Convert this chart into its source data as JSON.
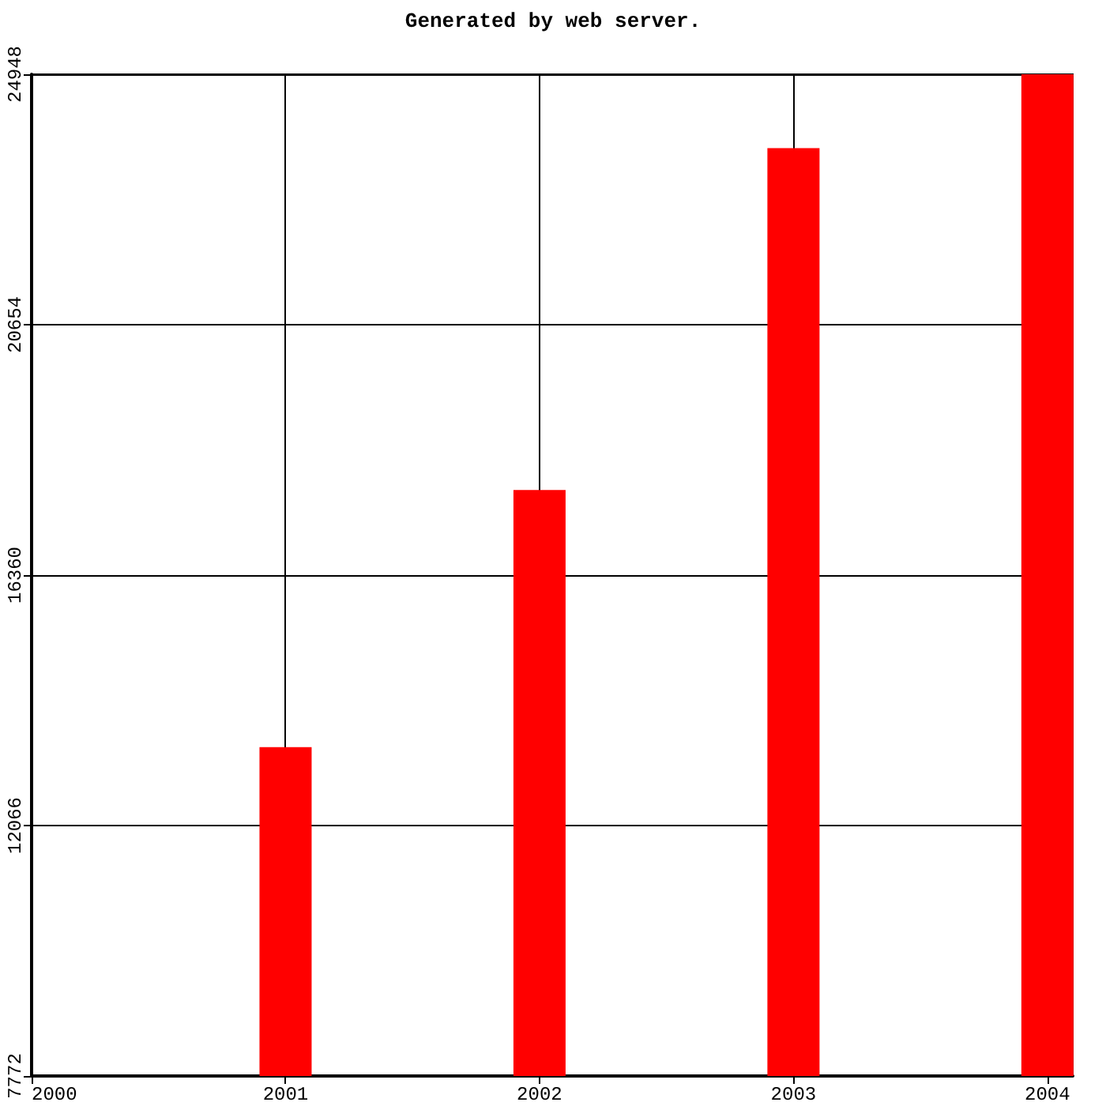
{
  "chart_data": {
    "type": "bar",
    "title": "Generated by web server.",
    "x": [
      2000,
      2001,
      2002,
      2003,
      2004
    ],
    "values": [
      7772,
      13410,
      17820,
      23680,
      24948
    ],
    "color": "#ff0000",
    "xlim": [
      2000,
      2004.1
    ],
    "xticks": [
      2000,
      2001,
      2002,
      2003,
      2004
    ],
    "ylim": [
      7772,
      24948
    ],
    "yticks": [
      7772,
      12066,
      16360,
      20654,
      24948
    ],
    "grid": true
  }
}
